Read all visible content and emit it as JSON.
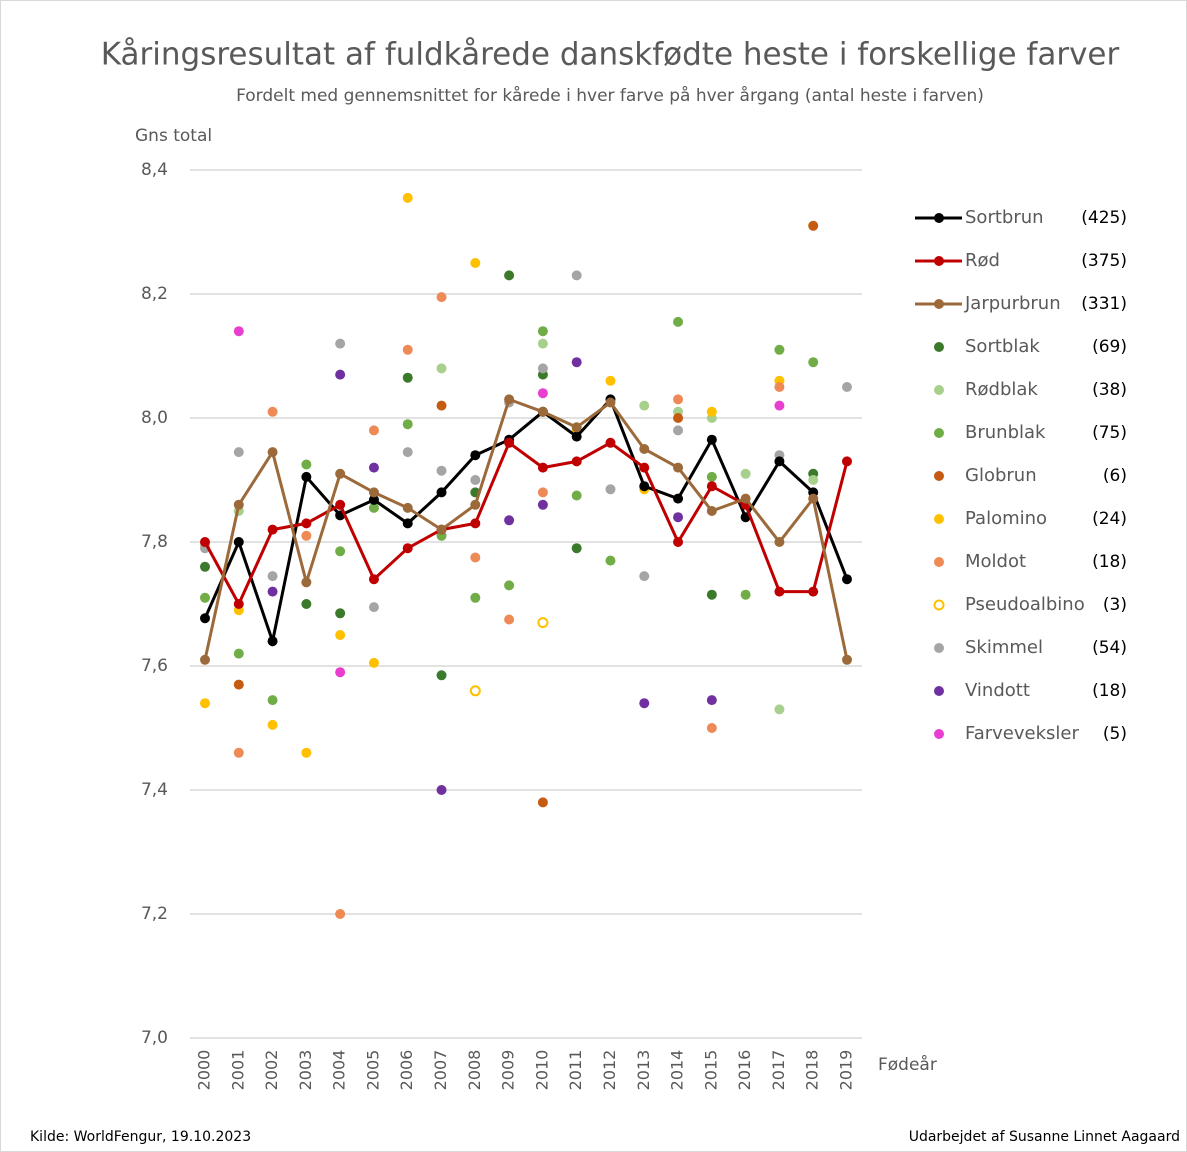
{
  "chart_data": {
    "type": "line",
    "title": "Kåringsresultat af fuldkårede danskfødte heste i forskellige farver",
    "subtitle": "Fordelt med gennemsnittet for kårede i hver farve på hver årgang (antal heste i farven)",
    "y_label": "Gns total",
    "x_label": "Fødeår",
    "source": "Kilde: WorldFengur, 19.10.2023",
    "credit": "Udarbejdet af Susanne Linnet Aagaard",
    "categories": [
      "2000",
      "2001",
      "2002",
      "2003",
      "2004",
      "2005",
      "2006",
      "2007",
      "2008",
      "2009",
      "2010",
      "2011",
      "2012",
      "2013",
      "2014",
      "2015",
      "2016",
      "2017",
      "2018",
      "2019"
    ],
    "ylim": [
      7.0,
      8.4
    ],
    "yticks": [
      {
        "value": 7.0,
        "label": "7,0"
      },
      {
        "value": 7.2,
        "label": "7,2"
      },
      {
        "value": 7.4,
        "label": "7,4"
      },
      {
        "value": 7.6,
        "label": "7,6"
      },
      {
        "value": 7.8,
        "label": "7,8"
      },
      {
        "value": 8.0,
        "label": "8,0"
      },
      {
        "value": 8.2,
        "label": "8,2"
      },
      {
        "value": 8.4,
        "label": "8,4"
      }
    ],
    "grid": true,
    "legend": "right",
    "series": [
      {
        "name": "Sortbrun",
        "count": "(425)",
        "mode": "line",
        "color": "#000000",
        "values": [
          7.677,
          7.8,
          7.64,
          7.905,
          7.843,
          7.868,
          7.83,
          7.88,
          7.94,
          7.965,
          8.01,
          7.97,
          8.03,
          7.89,
          7.87,
          7.965,
          7.84,
          7.93,
          7.88,
          7.74
        ]
      },
      {
        "name": "Rød",
        "count": "(375)",
        "mode": "line",
        "color": "#c00000",
        "values": [
          7.8,
          7.7,
          7.82,
          7.83,
          7.86,
          7.74,
          7.79,
          7.82,
          7.83,
          7.96,
          7.92,
          7.93,
          7.96,
          7.92,
          7.8,
          7.89,
          7.86,
          7.72,
          7.72,
          7.93
        ]
      },
      {
        "name": "Jarpurbrun",
        "count": "(331)",
        "mode": "line",
        "color": "#9c6a3a",
        "values": [
          7.61,
          7.86,
          7.945,
          7.735,
          7.91,
          7.88,
          7.855,
          7.82,
          7.86,
          8.03,
          8.01,
          7.985,
          8.025,
          7.95,
          7.92,
          7.85,
          7.87,
          7.8,
          7.87,
          7.61
        ]
      },
      {
        "name": "Sortblak",
        "count": "(69)",
        "mode": "marker",
        "color": "#3a7a2a",
        "values": [
          7.76,
          null,
          null,
          7.7,
          7.685,
          null,
          8.065,
          7.585,
          7.88,
          8.23,
          8.07,
          7.79,
          null,
          null,
          null,
          7.715,
          null,
          null,
          7.91,
          null
        ]
      },
      {
        "name": "Rødblak",
        "count": "(38)",
        "mode": "marker",
        "color": "#a8d08d",
        "values": [
          7.795,
          7.85,
          null,
          null,
          null,
          null,
          null,
          8.08,
          null,
          null,
          8.12,
          null,
          null,
          8.02,
          8.01,
          8.0,
          7.91,
          7.53,
          7.9,
          null
        ]
      },
      {
        "name": "Brunblak",
        "count": "(75)",
        "mode": "marker",
        "color": "#70ad47",
        "values": [
          7.71,
          7.62,
          7.545,
          7.925,
          7.785,
          7.855,
          7.99,
          7.81,
          7.71,
          7.73,
          8.14,
          7.875,
          7.77,
          null,
          8.155,
          7.905,
          7.715,
          8.11,
          8.09,
          null
        ]
      },
      {
        "name": "Globrun",
        "count": "(6)",
        "mode": "marker",
        "color": "#c55a11",
        "values": [
          null,
          7.57,
          null,
          null,
          null,
          null,
          null,
          8.02,
          null,
          null,
          7.38,
          null,
          null,
          null,
          8.0,
          null,
          null,
          null,
          8.31,
          null
        ]
      },
      {
        "name": "Palomino",
        "count": "(24)",
        "mode": "marker",
        "color": "#ffc000",
        "values": [
          7.54,
          7.69,
          7.505,
          7.46,
          7.65,
          7.605,
          8.355,
          null,
          8.25,
          null,
          null,
          7.98,
          8.06,
          7.885,
          null,
          8.01,
          null,
          8.06,
          7.87,
          null
        ]
      },
      {
        "name": "Moldot",
        "count": "(18)",
        "mode": "marker",
        "color": "#ee8a55",
        "values": [
          null,
          7.46,
          8.01,
          7.81,
          7.2,
          7.98,
          8.11,
          8.195,
          7.775,
          7.675,
          7.88,
          null,
          null,
          null,
          8.03,
          7.5,
          null,
          8.05,
          null,
          null
        ]
      },
      {
        "name": "Pseudoalbino",
        "count": "(3)",
        "mode": "hollow",
        "color": "#ffc000",
        "values": [
          null,
          null,
          null,
          null,
          null,
          null,
          null,
          null,
          7.56,
          null,
          7.67,
          null,
          null,
          null,
          null,
          null,
          null,
          null,
          null,
          null
        ]
      },
      {
        "name": "Skimmel",
        "count": "(54)",
        "mode": "marker",
        "color": "#a5a5a5",
        "values": [
          7.79,
          7.945,
          7.745,
          null,
          8.12,
          7.695,
          7.945,
          7.915,
          7.9,
          8.025,
          8.08,
          8.23,
          7.885,
          7.745,
          7.98,
          null,
          null,
          7.94,
          null,
          8.05
        ]
      },
      {
        "name": "Vindott",
        "count": "(18)",
        "mode": "marker",
        "color": "#7030a0",
        "values": [
          null,
          null,
          7.72,
          null,
          8.07,
          7.92,
          null,
          7.4,
          null,
          7.835,
          7.86,
          8.09,
          null,
          7.54,
          7.84,
          7.545,
          null,
          null,
          null,
          null
        ]
      },
      {
        "name": "Farveveksler",
        "count": "(5)",
        "mode": "marker",
        "color": "#e83fd0",
        "values": [
          null,
          8.14,
          null,
          null,
          7.59,
          null,
          null,
          null,
          null,
          null,
          8.04,
          null,
          null,
          null,
          null,
          null,
          null,
          8.02,
          null,
          null
        ]
      }
    ]
  }
}
